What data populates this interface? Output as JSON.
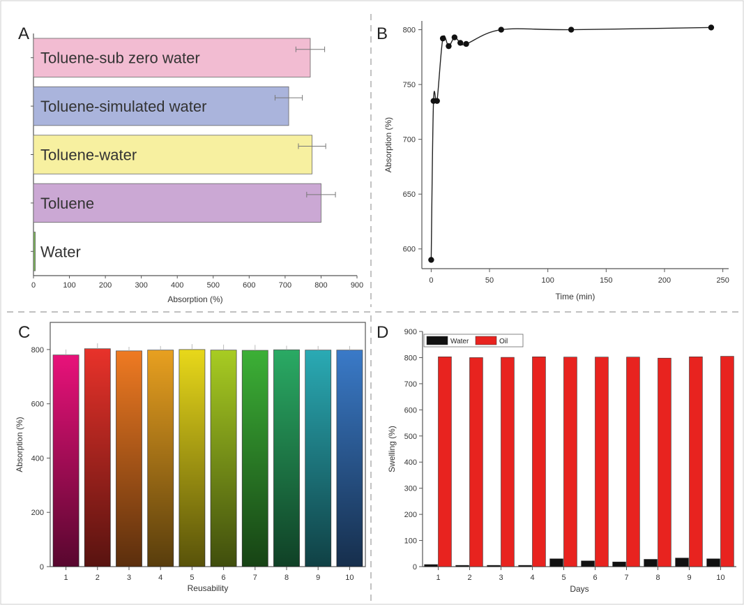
{
  "panels": {
    "a": "A",
    "b": "B",
    "c": "C",
    "d": "D"
  },
  "colors": {
    "axis": "#555555",
    "divider": "#9a9a9a",
    "oil": "#e8231f",
    "water": "#111111",
    "marker": "#111111"
  },
  "chart_data": [
    {
      "id": "A",
      "type": "bar",
      "orientation": "horizontal",
      "categories": [
        "Toluene-sub zero water",
        "Toluene-simulated water",
        "Toluene-water",
        "Toluene",
        "Water"
      ],
      "values": [
        770,
        710,
        775,
        800,
        5
      ],
      "errors": [
        40,
        38,
        38,
        40,
        0
      ],
      "colors": [
        "#f2bcd2",
        "#aab4dc",
        "#f7f0a0",
        "#cba8d4",
        "#7cb85a"
      ],
      "xlabel": "Absorption (%)",
      "ylabel": "",
      "xlim": [
        0,
        900
      ],
      "xticks": [
        0,
        100,
        200,
        300,
        400,
        500,
        600,
        700,
        800,
        900
      ],
      "grid": false
    },
    {
      "id": "B",
      "type": "line",
      "x": [
        0,
        2,
        5,
        10,
        15,
        20,
        25,
        30,
        60,
        120,
        240
      ],
      "y": [
        590,
        735,
        735,
        792,
        785,
        793,
        788,
        787,
        800,
        800,
        802
      ],
      "markers": true,
      "smooth": true,
      "xlabel": "Time (min)",
      "ylabel": "Absorption (%)",
      "xlim": [
        -8,
        255
      ],
      "ylim": [
        582,
        808
      ],
      "xticks": [
        0,
        50,
        100,
        150,
        200,
        250
      ],
      "yticks": [
        600,
        650,
        700,
        750,
        800
      ],
      "grid": false
    },
    {
      "id": "C",
      "type": "bar",
      "categories": [
        "1",
        "2",
        "3",
        "4",
        "5",
        "6",
        "7",
        "8",
        "9",
        "10"
      ],
      "values": [
        780,
        803,
        795,
        798,
        800,
        798,
        797,
        799,
        798,
        798
      ],
      "errors": [
        20,
        20,
        15,
        15,
        20,
        20,
        20,
        15,
        15,
        15
      ],
      "colors": [
        "#e8127a",
        "#e8322a",
        "#ef7a22",
        "#e8a020",
        "#e8d81a",
        "#a8cc22",
        "#3cb036",
        "#2aaa64",
        "#2aaab4",
        "#3a7ac8"
      ],
      "xlabel": "Reusability",
      "ylabel": "Absorption (%)",
      "ylim": [
        0,
        900
      ],
      "yticks": [
        0,
        200,
        400,
        600,
        800
      ],
      "grid": false
    },
    {
      "id": "D",
      "type": "bar",
      "categories": [
        "1",
        "2",
        "3",
        "4",
        "5",
        "6",
        "7",
        "8",
        "9",
        "10"
      ],
      "series": [
        {
          "name": "Water",
          "values": [
            8,
            5,
            5,
            5,
            30,
            22,
            18,
            28,
            33,
            30
          ]
        },
        {
          "name": "Oil",
          "values": [
            803,
            800,
            801,
            803,
            802,
            802,
            802,
            798,
            803,
            805
          ]
        }
      ],
      "xlabel": "Days",
      "ylabel": "Swelling (%)",
      "ylim": [
        0,
        900
      ],
      "yticks": [
        0,
        100,
        200,
        300,
        400,
        500,
        600,
        700,
        800,
        900
      ],
      "legend": "top-left",
      "grid": false
    }
  ]
}
